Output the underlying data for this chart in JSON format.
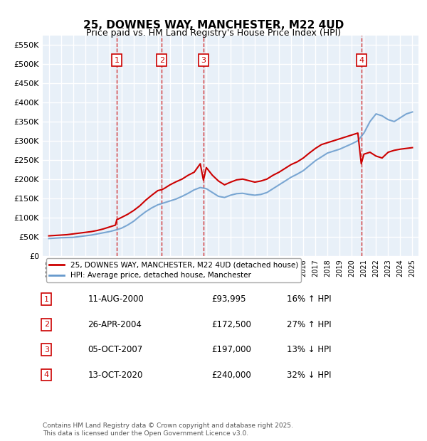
{
  "title": "25, DOWNES WAY, MANCHESTER, M22 4UD",
  "subtitle": "Price paid vs. HM Land Registry's House Price Index (HPI)",
  "footer": "Contains HM Land Registry data © Crown copyright and database right 2025.\nThis data is licensed under the Open Government Licence v3.0.",
  "legend_house": "25, DOWNES WAY, MANCHESTER, M22 4UD (detached house)",
  "legend_hpi": "HPI: Average price, detached house, Manchester",
  "ylim": [
    0,
    575000
  ],
  "yticks": [
    0,
    50000,
    100000,
    150000,
    200000,
    250000,
    300000,
    350000,
    400000,
    450000,
    500000,
    550000
  ],
  "ytick_labels": [
    "£0",
    "£50K",
    "£100K",
    "£150K",
    "£200K",
    "£250K",
    "£300K",
    "£350K",
    "£400K",
    "£450K",
    "£500K",
    "£550K"
  ],
  "sales": [
    {
      "num": 1,
      "year": 2000.61,
      "price": 93995,
      "date": "11-AUG-2000",
      "pct": "16%",
      "dir": "↑"
    },
    {
      "num": 2,
      "year": 2004.32,
      "price": 172500,
      "date": "26-APR-2004",
      "pct": "27%",
      "dir": "↑"
    },
    {
      "num": 3,
      "year": 2007.76,
      "price": 197000,
      "date": "05-OCT-2007",
      "pct": "13%",
      "dir": "↓"
    },
    {
      "num": 4,
      "year": 2020.78,
      "price": 240000,
      "date": "13-OCT-2020",
      "pct": "32%",
      "dir": "↓"
    }
  ],
  "hpi_years": [
    1995,
    1995.5,
    1996,
    1996.5,
    1997,
    1997.5,
    1998,
    1998.5,
    1999,
    1999.5,
    2000,
    2000.5,
    2001,
    2001.5,
    2002,
    2002.5,
    2003,
    2003.5,
    2004,
    2004.5,
    2005,
    2005.5,
    2006,
    2006.5,
    2007,
    2007.5,
    2008,
    2008.5,
    2009,
    2009.5,
    2010,
    2010.5,
    2011,
    2011.5,
    2012,
    2012.5,
    2013,
    2013.5,
    2014,
    2014.5,
    2015,
    2015.5,
    2016,
    2016.5,
    2017,
    2017.5,
    2018,
    2018.5,
    2019,
    2019.5,
    2020,
    2020.5,
    2021,
    2021.5,
    2022,
    2022.5,
    2023,
    2023.5,
    2024,
    2024.5,
    2025
  ],
  "hpi_values": [
    45000,
    46000,
    47000,
    47500,
    48000,
    50000,
    52000,
    54000,
    57000,
    60000,
    63000,
    67000,
    72000,
    80000,
    90000,
    103000,
    115000,
    125000,
    133000,
    138000,
    143000,
    148000,
    155000,
    163000,
    172000,
    178000,
    175000,
    165000,
    155000,
    152000,
    158000,
    162000,
    163000,
    160000,
    158000,
    160000,
    165000,
    175000,
    185000,
    195000,
    205000,
    213000,
    222000,
    235000,
    248000,
    258000,
    268000,
    273000,
    278000,
    285000,
    292000,
    300000,
    320000,
    350000,
    370000,
    365000,
    355000,
    350000,
    360000,
    370000,
    375000
  ],
  "red_years": [
    1995,
    1995.5,
    1996,
    1996.5,
    1997,
    1997.5,
    1998,
    1998.5,
    1999,
    1999.5,
    2000,
    2000.5,
    2000.61,
    2001,
    2001.5,
    2002,
    2002.5,
    2003,
    2003.5,
    2004,
    2004.32,
    2004.5,
    2005,
    2005.5,
    2006,
    2006.5,
    2007,
    2007.5,
    2007.76,
    2008,
    2008.5,
    2009,
    2009.5,
    2010,
    2010.5,
    2011,
    2011.5,
    2012,
    2012.5,
    2013,
    2013.5,
    2014,
    2014.5,
    2015,
    2015.5,
    2016,
    2016.5,
    2017,
    2017.5,
    2018,
    2018.5,
    2019,
    2019.5,
    2020,
    2020.5,
    2020.78,
    2021,
    2021.5,
    2022,
    2022.5,
    2023,
    2023.5,
    2024,
    2024.5,
    2025
  ],
  "red_values": [
    52000,
    53000,
    54000,
    55000,
    57000,
    59000,
    61000,
    63000,
    66000,
    70000,
    75000,
    80000,
    93995,
    100000,
    108000,
    118000,
    130000,
    145000,
    158000,
    170000,
    172500,
    175000,
    185000,
    193000,
    200000,
    210000,
    218000,
    240000,
    197000,
    230000,
    210000,
    195000,
    185000,
    192000,
    198000,
    200000,
    196000,
    192000,
    195000,
    200000,
    210000,
    218000,
    228000,
    238000,
    245000,
    255000,
    268000,
    280000,
    290000,
    295000,
    300000,
    305000,
    310000,
    315000,
    320000,
    240000,
    265000,
    270000,
    260000,
    255000,
    270000,
    275000,
    278000,
    280000,
    282000
  ],
  "bg_color": "#e8f0f8",
  "red_color": "#cc0000",
  "blue_color": "#6699cc",
  "grid_color": "#ffffff",
  "vline_color": "#cc0000",
  "box_color": "#cc0000",
  "xtick_years": [
    1995,
    1996,
    1997,
    1998,
    1999,
    2000,
    2001,
    2002,
    2003,
    2004,
    2005,
    2006,
    2007,
    2008,
    2009,
    2010,
    2011,
    2012,
    2013,
    2014,
    2015,
    2016,
    2017,
    2018,
    2019,
    2020,
    2021,
    2022,
    2023,
    2024,
    2025
  ]
}
